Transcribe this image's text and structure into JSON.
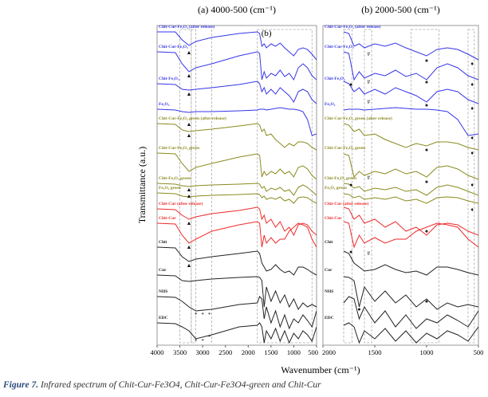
{
  "caption": {
    "label": "Figure 7.",
    "text": "Infrared spectrum of Chit-Cur-Fe3O4, Chit-Cur-Fe3O4-green and Chit-Cur"
  },
  "chart_data": {
    "type": "line",
    "panels": [
      {
        "title": "(a) 4000-500 (cm⁻¹)",
        "xlim": [
          4000,
          500
        ],
        "xticks": [
          4000,
          3500,
          3000,
          2500,
          2000,
          1500,
          1000,
          500
        ],
        "inset_label": "(b)",
        "highlight_regions": [
          [
            3500,
            3250
          ],
          [
            3250,
            3150
          ],
          [
            2800,
            2800
          ],
          [
            1800,
            600
          ]
        ]
      },
      {
        "title": "(b) 2000-500 (cm⁻¹)",
        "xlim": [
          2000,
          500
        ],
        "xticks": [
          2000,
          1500,
          1000,
          500
        ],
        "highlight_regions": [
          [
            1800,
            1720
          ],
          [
            1600,
            1530
          ],
          [
            1150,
            880
          ],
          [
            600,
            540
          ]
        ]
      }
    ],
    "xlabel": "Wavenumber (cm⁻¹)",
    "ylabel": "Transmittance (a.u.)",
    "ylim": [
      0,
      395
    ],
    "x": [
      4000,
      3600,
      3450,
      3300,
      3150,
      2800,
      2200,
      1800,
      1750,
      1700,
      1650,
      1600,
      1500,
      1400,
      1300,
      1200,
      1100,
      1000,
      900,
      800,
      700,
      600,
      500
    ],
    "series": [
      {
        "name": "Chit-Cur-Fe₃O₄ (after release)",
        "color": "#3535e8",
        "values": [
          390,
          390,
          380,
          373,
          378,
          383,
          388,
          390,
          388,
          372,
          375,
          370,
          375,
          372,
          376,
          370,
          365,
          360,
          368,
          370,
          368,
          362,
          355
        ]
      },
      {
        "name": "Chit-Cur-Fe₃O₄",
        "color": "#3535e8",
        "values": [
          365,
          364,
          350,
          340,
          345,
          350,
          360,
          365,
          363,
          330,
          340,
          332,
          338,
          335,
          342,
          334,
          338,
          330,
          345,
          350,
          345,
          335,
          330
        ]
      },
      {
        "name": "Chit-Fe₃O₄",
        "color": "#3535e8",
        "values": [
          325,
          324,
          318,
          317,
          318,
          320,
          324,
          328,
          325,
          315,
          320,
          312,
          318,
          312,
          320,
          315,
          310,
          302,
          315,
          318,
          315,
          305,
          300
        ]
      },
      {
        "name": "Fe₃O₄",
        "color": "#3535e8",
        "values": [
          293,
          292,
          290,
          289,
          290,
          290,
          291,
          292,
          293,
          293,
          293,
          292,
          293,
          294,
          295,
          294,
          293,
          293,
          292,
          290,
          280,
          260,
          262
        ]
      },
      {
        "name": "Chit-Cur-Fe₃O₄ green (after release)",
        "color": "#8a8a1e",
        "values": [
          275,
          274,
          267,
          265,
          266,
          268,
          272,
          275,
          273,
          265,
          268,
          260,
          262,
          255,
          250,
          245,
          250,
          247,
          252,
          252,
          250,
          245,
          242
        ]
      },
      {
        "name": "Chit-Cur-Fe₃O₄ green",
        "color": "#8a8a1e",
        "values": [
          238,
          237,
          225,
          215,
          220,
          225,
          233,
          237,
          235,
          208,
          215,
          210,
          215,
          212,
          218,
          212,
          215,
          208,
          220,
          222,
          218,
          210,
          205
        ]
      },
      {
        "name": "Chit-Fe₃O₄ green",
        "color": "#8a8a1e",
        "values": [
          200,
          199,
          197,
          196,
          197,
          198,
          199,
          200,
          199,
          194,
          196,
          190,
          194,
          192,
          195,
          190,
          192,
          185,
          195,
          198,
          195,
          190,
          185
        ]
      },
      {
        "name": "Fe₃O₄ green",
        "color": "#8a8a1e",
        "values": [
          188,
          187,
          184,
          183,
          184,
          185,
          186,
          187,
          186,
          182,
          184,
          180,
          182,
          180,
          183,
          178,
          180,
          175,
          182,
          183,
          182,
          178,
          175
        ]
      },
      {
        "name": "Chit-Cur (after release)",
        "color": "#ee2a2a",
        "values": [
          168,
          167,
          160,
          155,
          158,
          162,
          166,
          170,
          168,
          155,
          160,
          150,
          155,
          145,
          152,
          140,
          145,
          135,
          148,
          150,
          148,
          140,
          135
        ]
      },
      {
        "name": "Chit-Cur",
        "color": "#ee2a2a",
        "values": [
          150,
          149,
          135,
          125,
          130,
          140,
          148,
          152,
          150,
          120,
          135,
          125,
          132,
          125,
          130,
          130,
          140,
          145,
          150,
          148,
          145,
          130,
          120
        ]
      },
      {
        "name": "Chit",
        "color": "#222222",
        "values": [
          120,
          119,
          108,
          102,
          105,
          108,
          112,
          115,
          112,
          100,
          95,
          90,
          92,
          98,
          92,
          88,
          90,
          85,
          95,
          95,
          92,
          88,
          85
        ]
      },
      {
        "name": "Cur",
        "color": "#222222",
        "values": [
          85,
          84,
          78,
          77,
          78,
          80,
          82,
          83,
          82,
          78,
          45,
          70,
          52,
          65,
          50,
          60,
          45,
          55,
          42,
          50,
          45,
          48,
          45
        ]
      },
      {
        "name": "NHS",
        "color": "#222222",
        "values": [
          58,
          57,
          52,
          45,
          40,
          42,
          48,
          50,
          58,
          55,
          30,
          45,
          25,
          40,
          20,
          35,
          18,
          30,
          25,
          35,
          28,
          20,
          40
        ]
      },
      {
        "name": "EDC",
        "color": "#222222",
        "values": [
          25,
          24,
          20,
          15,
          5,
          10,
          20,
          22,
          25,
          20,
          0,
          15,
          5,
          18,
          2,
          15,
          0,
          12,
          5,
          15,
          10,
          2,
          20
        ]
      }
    ],
    "markers": [
      {
        "panel": 0,
        "x": 3300,
        "y": 366,
        "symbol": "▲"
      },
      {
        "panel": 0,
        "x": 3300,
        "y": 333,
        "symbol": "▲"
      },
      {
        "panel": 0,
        "x": 3300,
        "y": 310,
        "symbol": "▲"
      },
      {
        "panel": 0,
        "x": 3300,
        "y": 282,
        "symbol": "▲"
      },
      {
        "panel": 0,
        "x": 3300,
        "y": 258,
        "symbol": "▲"
      },
      {
        "panel": 0,
        "x": 3300,
        "y": 208,
        "symbol": "▲"
      },
      {
        "panel": 0,
        "x": 3300,
        "y": 190,
        "symbol": "▲"
      },
      {
        "panel": 0,
        "x": 3300,
        "y": 148,
        "symbol": "▲"
      },
      {
        "panel": 0,
        "x": 3300,
        "y": 118,
        "symbol": "▲"
      },
      {
        "panel": 0,
        "x": 3300,
        "y": 95,
        "symbol": "▲"
      },
      {
        "panel": 0,
        "x": 3150,
        "y": 33,
        "symbol": "*"
      },
      {
        "panel": 0,
        "x": 3000,
        "y": 33,
        "symbol": "*"
      },
      {
        "panel": 0,
        "x": 2850,
        "y": 33,
        "symbol": "*"
      },
      {
        "panel": 0,
        "x": 3150,
        "y": 0,
        "symbol": "*"
      },
      {
        "panel": 0,
        "x": 3000,
        "y": 0,
        "symbol": "*"
      },
      {
        "panel": 0,
        "x": 2850,
        "y": 5,
        "symbol": "*"
      },
      {
        "panel": 1,
        "x": 1560,
        "y": 360,
        "symbol": "#"
      },
      {
        "panel": 1,
        "x": 1560,
        "y": 325,
        "symbol": "#"
      },
      {
        "panel": 1,
        "x": 1560,
        "y": 300,
        "symbol": "#"
      },
      {
        "panel": 1,
        "x": 1560,
        "y": 205,
        "symbol": "#"
      },
      {
        "panel": 1,
        "x": 1560,
        "y": 110,
        "symbol": "#"
      },
      {
        "panel": 1,
        "x": 1000,
        "y": 352,
        "symbol": "♠"
      },
      {
        "panel": 1,
        "x": 1000,
        "y": 325,
        "symbol": "♠"
      },
      {
        "panel": 1,
        "x": 1000,
        "y": 296,
        "symbol": "♠"
      },
      {
        "panel": 1,
        "x": 1000,
        "y": 240,
        "symbol": "♠"
      },
      {
        "panel": 1,
        "x": 1000,
        "y": 200,
        "symbol": "♠"
      },
      {
        "panel": 1,
        "x": 1000,
        "y": 138,
        "symbol": "♠"
      },
      {
        "panel": 1,
        "x": 1000,
        "y": 50,
        "symbol": "♠"
      },
      {
        "panel": 1,
        "x": 1730,
        "y": 322,
        "symbol": "●"
      },
      {
        "panel": 1,
        "x": 1730,
        "y": 204,
        "symbol": "●"
      },
      {
        "panel": 1,
        "x": 1730,
        "y": 112,
        "symbol": "●"
      },
      {
        "panel": 1,
        "x": 1650,
        "y": 40,
        "symbol": "●"
      },
      {
        "panel": 1,
        "x": 560,
        "y": 348,
        "symbol": "♦"
      },
      {
        "panel": 1,
        "x": 560,
        "y": 322,
        "symbol": "♦"
      },
      {
        "panel": 1,
        "x": 560,
        "y": 292,
        "symbol": "♦"
      },
      {
        "panel": 1,
        "x": 560,
        "y": 255,
        "symbol": "♦"
      },
      {
        "panel": 1,
        "x": 560,
        "y": 236,
        "symbol": "♦"
      },
      {
        "panel": 1,
        "x": 560,
        "y": 196,
        "symbol": "♦"
      },
      {
        "panel": 1,
        "x": 560,
        "y": 165,
        "symbol": "♦"
      }
    ]
  }
}
